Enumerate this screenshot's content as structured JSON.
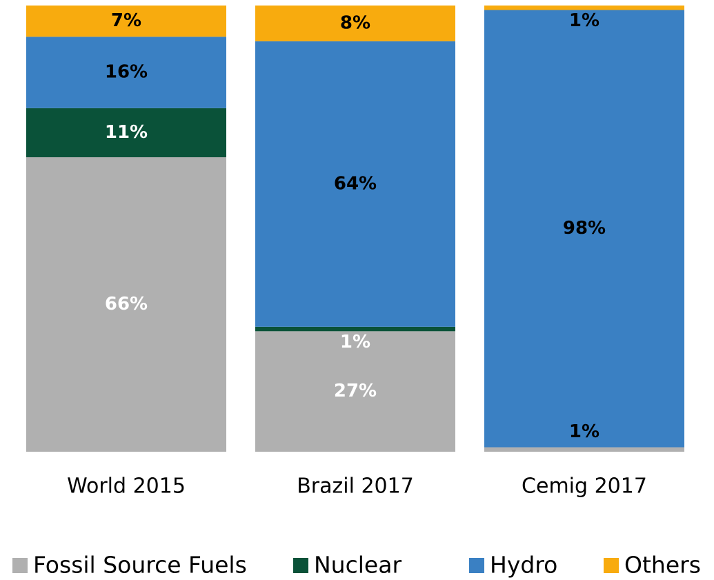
{
  "chart_data": {
    "type": "stacked_bar",
    "categories": [
      "World 2015",
      "Brazil 2017",
      "Cemig 2017"
    ],
    "series": [
      {
        "name": "Fossil Source Fuels",
        "color": "#b0b0b0",
        "values": [
          66,
          27,
          1
        ],
        "value_labels": [
          "66%",
          "27%",
          "1%"
        ]
      },
      {
        "name": "Nuclear",
        "color": "#0a5239",
        "values": [
          11,
          1,
          0
        ],
        "value_labels": [
          "11%",
          "1%",
          null
        ]
      },
      {
        "name": "Hydro",
        "color": "#3a80c3",
        "values": [
          16,
          64,
          98
        ],
        "value_labels": [
          "16%",
          "64%",
          "98%"
        ]
      },
      {
        "name": "Others",
        "color": "#f8ab0e",
        "values": [
          7,
          8,
          1
        ],
        "value_labels": [
          "7%",
          "8%",
          "1%"
        ]
      }
    ],
    "ylim": [
      0,
      100
    ]
  }
}
